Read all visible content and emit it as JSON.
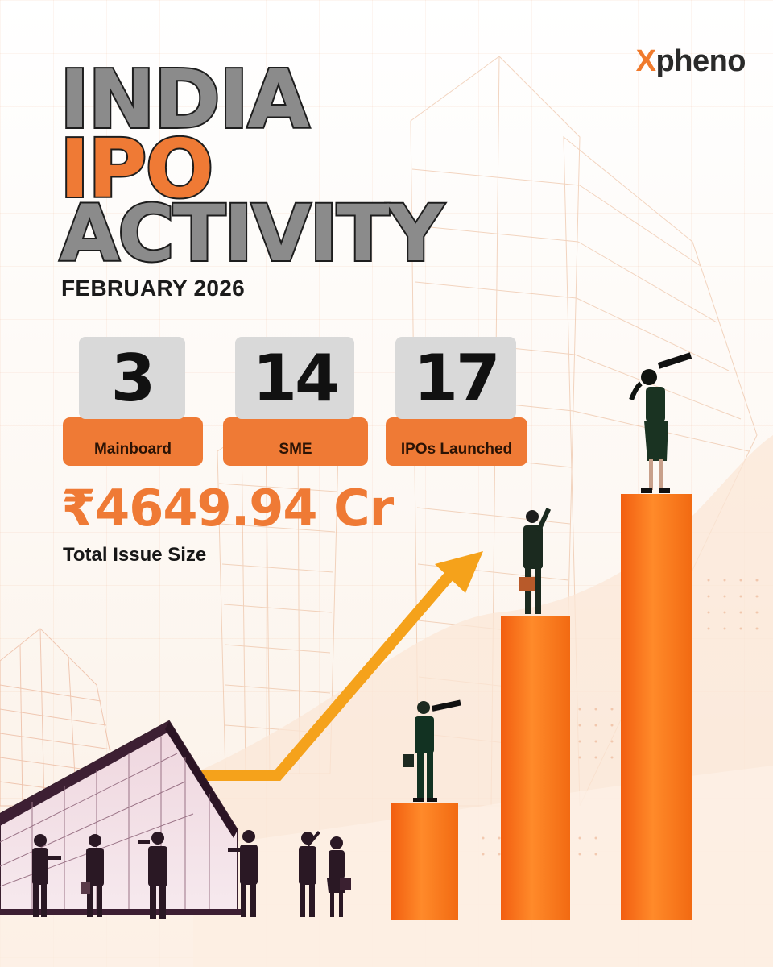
{
  "brand": {
    "logo_x": "X",
    "logo_rest": "pheno"
  },
  "title": {
    "line1": "INDIA",
    "line2": "IPO",
    "line3": "ACTIVITY"
  },
  "subtitle": "FEBRUARY 2026",
  "stats": [
    {
      "value": "3",
      "label": "Mainboard"
    },
    {
      "value": "14",
      "label": "SME"
    },
    {
      "value": "17",
      "label": "IPOs Launched"
    }
  ],
  "issue": {
    "amount": "₹4649.94 Cr",
    "label": "Total Issue Size"
  },
  "colors": {
    "accent": "#ef7a35",
    "bar": "#f47a1f",
    "arrow": "#f5a21b",
    "title_gray": "#8b8b8b",
    "dark": "#1d1d1d",
    "stat_box": "#d9d9d9"
  },
  "illustration": {
    "icons": [
      "growth-arrow-icon",
      "bar-chart-icon",
      "office-building-icon",
      "businessperson-figure-icon",
      "telescope-icon",
      "briefcase-icon"
    ]
  }
}
